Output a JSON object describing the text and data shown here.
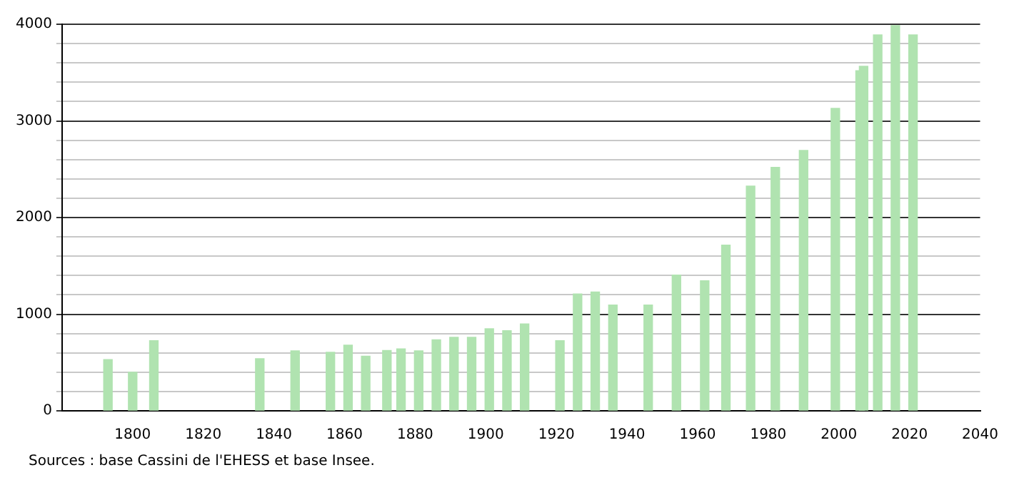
{
  "chart_data": {
    "type": "bar",
    "x": [
      1793,
      1800,
      1806,
      1836,
      1846,
      1856,
      1861,
      1866,
      1872,
      1876,
      1881,
      1886,
      1891,
      1896,
      1901,
      1906,
      1911,
      1921,
      1926,
      1931,
      1936,
      1946,
      1954,
      1962,
      1968,
      1975,
      1982,
      1990,
      1999,
      2006,
      2007,
      2011,
      2016,
      2021
    ],
    "values": [
      530,
      400,
      725,
      540,
      620,
      605,
      680,
      565,
      625,
      640,
      620,
      735,
      760,
      760,
      850,
      830,
      900,
      725,
      1210,
      1230,
      1095,
      1095,
      1405,
      1345,
      1715,
      2325,
      2520,
      2695,
      3130,
      3520,
      3565,
      3890,
      3985,
      3890
    ],
    "color": "#b0e3b0",
    "xlim": [
      1780,
      2040
    ],
    "xticks": [
      1800,
      1820,
      1840,
      1860,
      1880,
      1900,
      1920,
      1940,
      1960,
      1980,
      2000,
      2020,
      2040
    ],
    "ylim": [
      0,
      4000
    ],
    "yticks": [
      0,
      {
        "value": 200,
        "label": null
      },
      {
        "value": 400,
        "label": null
      },
      {
        "value": 600,
        "label": null
      },
      {
        "value": 800,
        "label": null
      },
      1000,
      {
        "value": 1200,
        "label": null
      },
      {
        "value": 1400,
        "label": null
      },
      {
        "value": 1600,
        "label": null
      },
      {
        "value": 1800,
        "label": null
      },
      2000,
      {
        "value": 2200,
        "label": null
      },
      {
        "value": 2400,
        "label": null
      },
      {
        "value": 2600,
        "label": null
      },
      {
        "value": 2800,
        "label": null
      },
      3000,
      {
        "value": 3200,
        "label": null
      },
      {
        "value": 3400,
        "label": null
      },
      {
        "value": 3600,
        "label": null
      },
      {
        "value": 3800,
        "label": null
      },
      4000
    ],
    "grid": "y",
    "annotations": [
      "Sources : base Cassini de l'EHESS et base Insee."
    ]
  }
}
